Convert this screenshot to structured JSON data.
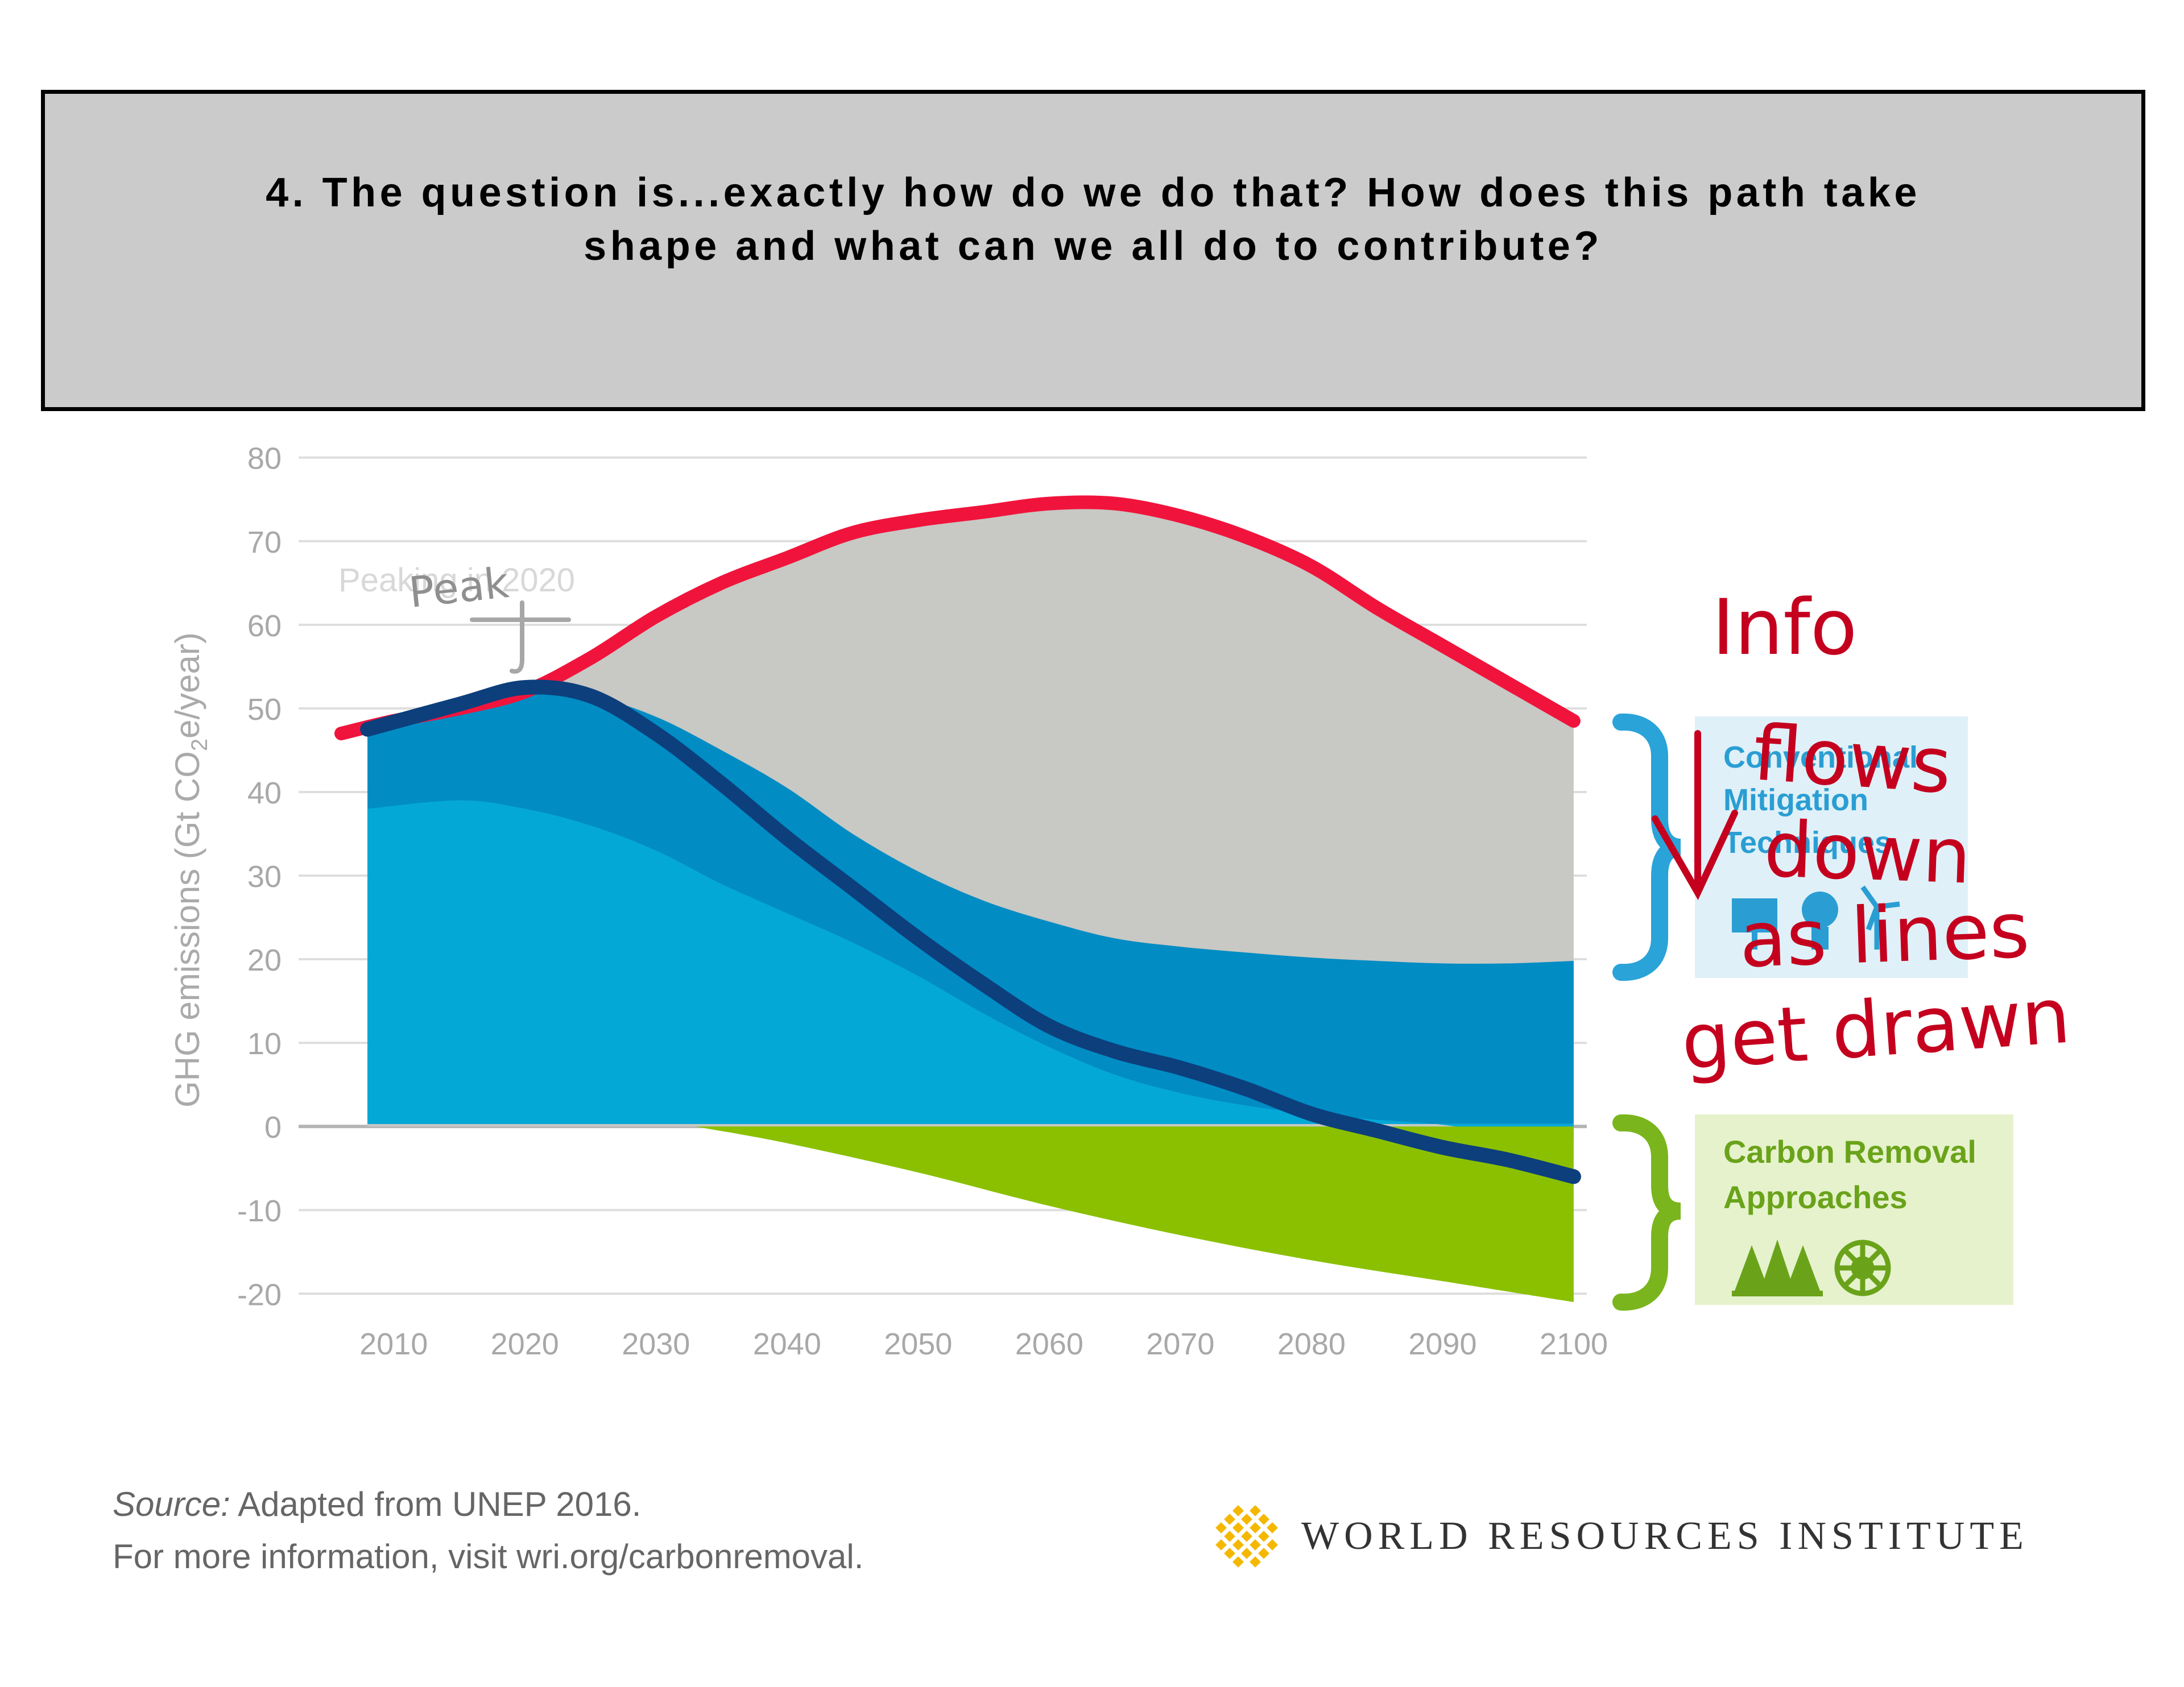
{
  "header": {
    "line1": "4. The question is...exactly how do we do that?  How does this path take",
    "line2": "shape and what can we all do to contribute?"
  },
  "chart_data": {
    "type": "area",
    "xlabel": "",
    "ylabel": "GHG emissions (Gt CO2e/year)",
    "ylabel_parts": {
      "main": "GHG emissions (Gt CO",
      "sub": "2",
      "end": "e/year)"
    },
    "xlim": [
      2006,
      2101
    ],
    "ylim": [
      -21,
      81
    ],
    "x_ticks": [
      2010,
      2020,
      2030,
      2040,
      2050,
      2060,
      2070,
      2080,
      2090,
      2100
    ],
    "y_ticks": [
      80,
      70,
      60,
      50,
      40,
      30,
      20,
      10,
      0,
      -10,
      -20
    ],
    "grid": true,
    "series": [
      {
        "name": "",
        "role": "baseline area (gray)",
        "color": "#c8c8c4",
        "x": [
          2008,
          2015,
          2020,
          2025,
          2030,
          2035,
          2040,
          2045,
          2050,
          2055,
          2060,
          2065,
          2070,
          2075,
          2080,
          2085,
          2090,
          2095,
          2100
        ],
        "y": [
          48,
          50,
          52,
          56,
          61,
          64.5,
          68,
          71,
          72.5,
          73.5,
          74.5,
          74.5,
          73,
          70.5,
          67,
          62.5,
          58,
          53.5,
          48.5
        ]
      },
      {
        "name": "",
        "role": "conventional mitigation band, dark blue fill (upper)",
        "color": "#018cc4",
        "x": [
          2008,
          2015,
          2020,
          2025,
          2030,
          2035,
          2040,
          2045,
          2050,
          2055,
          2060,
          2065,
          2070,
          2075,
          2080,
          2085,
          2090,
          2095,
          2100
        ],
        "y": [
          48,
          50,
          52,
          51.5,
          49,
          45,
          40.5,
          35,
          30.5,
          27,
          24.5,
          22.5,
          21.5,
          20.8,
          20.2,
          19.8,
          19.5,
          19.5,
          19.8
        ]
      },
      {
        "name": "",
        "role": "conventional mitigation band, light blue fill (lower)",
        "color": "#04a8d7",
        "x": [
          2008,
          2015,
          2020,
          2025,
          2030,
          2035,
          2040,
          2045,
          2050,
          2055,
          2060,
          2065,
          2070,
          2075,
          2080,
          2085,
          2090,
          2095,
          2100
        ],
        "y": [
          38,
          39,
          38,
          36,
          33,
          29,
          25.5,
          22,
          18,
          13.5,
          9.5,
          6.2,
          4,
          2.5,
          1.5,
          0.8,
          0.2,
          -1,
          -1.5
        ]
      },
      {
        "name": "",
        "role": "carbon removal area (green, negative)",
        "color": "#8ac000",
        "x": [
          2033,
          2040,
          2050,
          2060,
          2070,
          2080,
          2090,
          2100
        ],
        "y": [
          0,
          -2,
          -5.5,
          -9.5,
          -13,
          -16,
          -18.5,
          -21
        ]
      },
      {
        "name": "",
        "role": "drawn-over line: baseline peak (red)",
        "color": "#f0143c",
        "x": [
          2006,
          2010,
          2015,
          2020,
          2025,
          2030,
          2035,
          2040,
          2045,
          2050,
          2055,
          2060,
          2065,
          2070,
          2075,
          2080,
          2085,
          2090,
          2095,
          2100
        ],
        "y": [
          47,
          48.5,
          50,
          52,
          56,
          61,
          65,
          68,
          71,
          72.5,
          73.5,
          74.5,
          74.5,
          73,
          70.5,
          67,
          62,
          57.5,
          53,
          48.5
        ]
      },
      {
        "name": "",
        "role": "drawn-over line: net emissions pathway (navy)",
        "color": "#0c3f7c",
        "x": [
          2008,
          2015,
          2020,
          2025,
          2030,
          2035,
          2040,
          2045,
          2050,
          2055,
          2060,
          2065,
          2070,
          2075,
          2080,
          2085,
          2090,
          2095,
          2100
        ],
        "y": [
          47.5,
          50.5,
          52.5,
          51.5,
          47,
          41,
          34.5,
          28.5,
          22.5,
          17,
          12,
          9,
          7,
          4.5,
          1.5,
          -0.5,
          -2.5,
          -4,
          -6
        ]
      }
    ],
    "annotations": [
      {
        "text": "Peaking in 2020",
        "style": "faded chart label"
      },
      {
        "text": "Peak",
        "style": "handwritten"
      },
      {
        "text": "Info",
        "style": "handwritten"
      },
      {
        "text": "flows",
        "style": "handwritten"
      },
      {
        "text": "down",
        "style": "handwritten"
      },
      {
        "text": "as lines",
        "style": "handwritten"
      },
      {
        "text": "get drawn",
        "style": "handwritten"
      }
    ],
    "legend_boxes": [
      {
        "lines": [
          "Conventional",
          "Mitigation",
          "Techniques"
        ],
        "color": "#2aa3d8",
        "icons": [
          "solar-panel-icon",
          "light-bulb-icon",
          "wind-turbine-icon"
        ]
      },
      {
        "lines": [
          "Carbon Removal",
          "Approaches"
        ],
        "color": "#7ab51d",
        "icons": [
          "trees-icon",
          "sun-wheel-icon"
        ]
      }
    ]
  },
  "source": {
    "label": "Source:",
    "text": " Adapted from UNEP 2016.",
    "line2": "For more information, visit wri.org/carbonremoval."
  },
  "logo": {
    "text": "WORLD RESOURCES INSTITUTE",
    "color": "#f5b800"
  }
}
